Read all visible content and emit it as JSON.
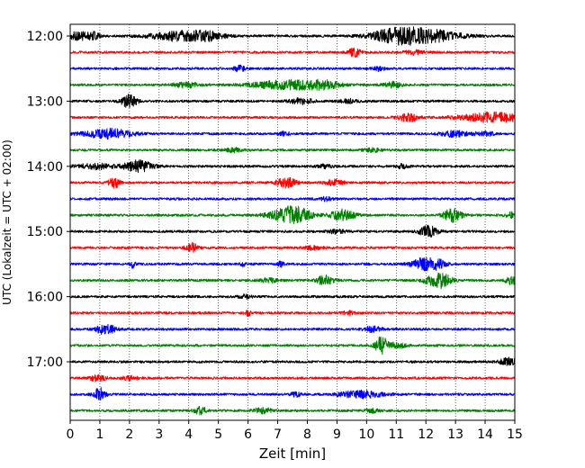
{
  "chart_data": {
    "type": "line",
    "title": "",
    "xlabel": "Zeit  [min]",
    "ylabel": "UTC (Lokalzeit = UTC + 02:00)",
    "xlim": [
      0,
      15
    ],
    "x_ticks": [
      0,
      1,
      2,
      3,
      4,
      5,
      6,
      7,
      8,
      9,
      10,
      11,
      12,
      13,
      14,
      15
    ],
    "y_tick_labels": [
      "12:00",
      "13:00",
      "14:00",
      "15:00",
      "16:00",
      "17:00"
    ],
    "grid": {
      "x": true,
      "style": "dotted"
    },
    "trace_start_utc": "12:00",
    "trace_interval_min": 15,
    "trace_count": 24,
    "color_cycle": [
      "#000000",
      "#ff0000",
      "#0000ff",
      "#008000"
    ],
    "traces": [
      {
        "start": "12:00",
        "events": [
          [
            0.3,
            5,
            0.3
          ],
          [
            0.8,
            4,
            0.2
          ],
          [
            3.6,
            5,
            0.9
          ],
          [
            4.6,
            4,
            0.6
          ],
          [
            10.9,
            6,
            0.8
          ],
          [
            12.0,
            7,
            1.1
          ]
        ]
      },
      {
        "start": "12:15",
        "events": [
          [
            9.6,
            5,
            0.2
          ],
          [
            11.6,
            2,
            0.3
          ]
        ]
      },
      {
        "start": "12:30",
        "events": [
          [
            5.7,
            3,
            0.2
          ],
          [
            10.4,
            2,
            0.2
          ]
        ]
      },
      {
        "start": "12:45",
        "events": [
          [
            3.9,
            3,
            0.4
          ],
          [
            7.4,
            5,
            1.2
          ],
          [
            8.6,
            3,
            0.5
          ],
          [
            10.9,
            3,
            0.3
          ]
        ]
      },
      {
        "start": "13:00",
        "events": [
          [
            1.9,
            5,
            0.2
          ],
          [
            2.1,
            4,
            0.2
          ],
          [
            7.8,
            3,
            0.4
          ],
          [
            9.4,
            2,
            0.3
          ]
        ]
      },
      {
        "start": "13:15",
        "events": [
          [
            11.4,
            5,
            0.3
          ],
          [
            14.3,
            5,
            1.1
          ]
        ]
      },
      {
        "start": "13:30",
        "events": [
          [
            1.3,
            5,
            0.8
          ],
          [
            7.2,
            2,
            0.2
          ],
          [
            13.0,
            3,
            0.5
          ],
          [
            14.0,
            2,
            0.3
          ]
        ]
      },
      {
        "start": "13:45",
        "events": [
          [
            5.5,
            2,
            0.3
          ],
          [
            10.2,
            2,
            0.3
          ]
        ]
      },
      {
        "start": "14:00",
        "events": [
          [
            0.8,
            3,
            0.6
          ],
          [
            2.3,
            6,
            0.5
          ],
          [
            8.6,
            2,
            0.2
          ],
          [
            11.2,
            2,
            0.2
          ]
        ]
      },
      {
        "start": "14:15",
        "events": [
          [
            1.5,
            5,
            0.2
          ],
          [
            7.3,
            6,
            0.3
          ],
          [
            8.9,
            3,
            0.3
          ]
        ]
      },
      {
        "start": "14:30",
        "events": [
          [
            8.6,
            2,
            0.2
          ]
        ]
      },
      {
        "start": "14:45",
        "events": [
          [
            7.3,
            6,
            0.6
          ],
          [
            7.7,
            5,
            0.5
          ],
          [
            9.2,
            6,
            0.4
          ],
          [
            12.9,
            7,
            0.3
          ],
          [
            14.9,
            3,
            0.2
          ]
        ]
      },
      {
        "start": "15:00",
        "events": [
          [
            12.1,
            6,
            0.3
          ],
          [
            9.0,
            2,
            0.3
          ]
        ]
      },
      {
        "start": "15:15",
        "events": [
          [
            4.1,
            5,
            0.2
          ],
          [
            8.2,
            2,
            0.3
          ]
        ]
      },
      {
        "start": "15:30",
        "events": [
          [
            2.1,
            4,
            0.1
          ],
          [
            5.8,
            3,
            0.1
          ],
          [
            7.1,
            3,
            0.1
          ],
          [
            11.9,
            6,
            0.4
          ],
          [
            12.4,
            4,
            0.3
          ]
        ]
      },
      {
        "start": "15:45",
        "events": [
          [
            6.7,
            2,
            0.3
          ],
          [
            8.6,
            5,
            0.3
          ],
          [
            12.3,
            5,
            0.4
          ],
          [
            12.6,
            5,
            0.3
          ],
          [
            14.9,
            5,
            0.2
          ]
        ]
      },
      {
        "start": "16:00",
        "events": [
          [
            5.9,
            2,
            0.2
          ]
        ]
      },
      {
        "start": "16:15",
        "events": [
          [
            6.0,
            3,
            0.1
          ],
          [
            9.4,
            2,
            0.2
          ]
        ]
      },
      {
        "start": "16:30",
        "events": [
          [
            1.2,
            6,
            0.3
          ],
          [
            10.2,
            3,
            0.3
          ]
        ]
      },
      {
        "start": "16:45",
        "events": [
          [
            10.5,
            10,
            0.2
          ],
          [
            11.0,
            3,
            0.3
          ]
        ]
      },
      {
        "start": "17:00",
        "events": [
          [
            14.8,
            4,
            0.3
          ]
        ]
      },
      {
        "start": "17:15",
        "events": [
          [
            0.9,
            3,
            0.3
          ],
          [
            2.0,
            2,
            0.3
          ]
        ]
      },
      {
        "start": "17:30",
        "events": [
          [
            1.0,
            7,
            0.2
          ],
          [
            9.8,
            4,
            0.7
          ],
          [
            7.6,
            2,
            0.2
          ]
        ]
      },
      {
        "start": "17:45",
        "events": [
          [
            4.4,
            4,
            0.2
          ],
          [
            6.5,
            3,
            0.3
          ],
          [
            10.2,
            2,
            0.2
          ]
        ]
      }
    ]
  }
}
